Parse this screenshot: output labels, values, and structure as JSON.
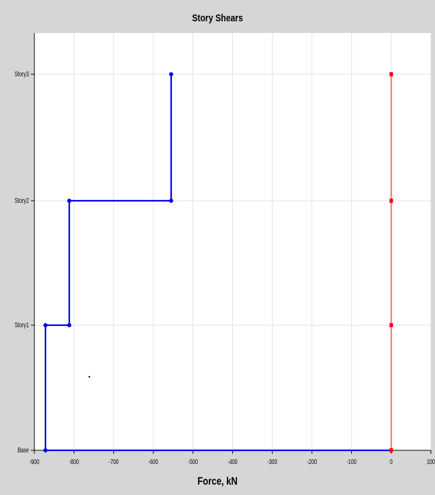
{
  "chart_data": {
    "type": "line",
    "title": "Story Shears",
    "xlabel": "Force, kN",
    "ylabel": "",
    "xlim": [
      -900,
      100
    ],
    "x_ticks": [
      -900,
      -800,
      -700,
      -600,
      -500,
      -400,
      -300,
      -200,
      -100,
      0,
      100
    ],
    "categories": [
      "Base",
      "Story1",
      "Story2",
      "Story3"
    ],
    "grid": true,
    "series": [
      {
        "color": "#0000ee",
        "points": [
          {
            "x": -555,
            "y": "Story3"
          },
          {
            "x": -555,
            "y": "Story2"
          },
          {
            "x": -812,
            "y": "Story2"
          },
          {
            "x": -812,
            "y": "Story1"
          },
          {
            "x": -872,
            "y": "Story1"
          },
          {
            "x": -872,
            "y": "Base"
          },
          {
            "x": 0,
            "y": "Base"
          }
        ],
        "marker_points": [
          {
            "x": -555,
            "y": "Story3"
          },
          {
            "x": -555,
            "y": "Story2"
          },
          {
            "x": -812,
            "y": "Story2"
          },
          {
            "x": -812,
            "y": "Story1"
          },
          {
            "x": -872,
            "y": "Story1"
          },
          {
            "x": -872,
            "y": "Base"
          }
        ]
      },
      {
        "color": "#ff0000",
        "points": [
          {
            "x": 0,
            "y": "Base"
          },
          {
            "x": 0,
            "y": "Story1"
          },
          {
            "x": 0,
            "y": "Story2"
          },
          {
            "x": 0,
            "y": "Story3"
          }
        ],
        "marker_points": [
          {
            "x": 0,
            "y": "Base"
          },
          {
            "x": 0,
            "y": "Story1"
          },
          {
            "x": 0,
            "y": "Story2"
          },
          {
            "x": 0,
            "y": "Story3"
          }
        ]
      }
    ]
  }
}
